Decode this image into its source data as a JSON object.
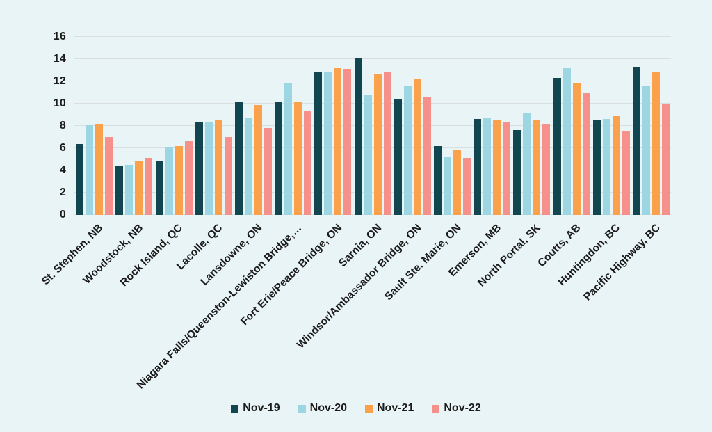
{
  "colors": {
    "background": "#e9f4f7",
    "gridline": "#d9dee1",
    "text": "#1b1b1b"
  },
  "chart_data": {
    "type": "bar",
    "title": "",
    "xlabel": "",
    "ylabel": "",
    "ylim": [
      0,
      16
    ],
    "yticks": [
      0,
      2,
      4,
      6,
      8,
      10,
      12,
      14,
      16
    ],
    "grid": true,
    "legend_position": "bottom",
    "categories": [
      "St. Stephen, NB",
      "Woodstock, NB",
      "Rock Island, QC",
      "Lacolle, QC",
      "Lansdowne, ON",
      "Niagara Falls/Queenston-Lewiston Bridge,…",
      "Fort Erie/Peace Bridge, ON",
      "Sarnia, ON",
      "Windsor/Ambassador Bridge, ON",
      "Sault Ste. Marie, ON",
      "Emerson, MB",
      "North Portal, SK",
      "Coutts, AB",
      "Huntingdon, BC",
      "Pacific Highway, BC"
    ],
    "series": [
      {
        "name": "Nov-19",
        "color": "#11454f",
        "values": [
          6.4,
          4.4,
          4.9,
          8.3,
          10.1,
          10.1,
          12.8,
          14.1,
          10.4,
          6.2,
          8.6,
          7.6,
          12.3,
          8.5,
          13.3
        ]
      },
      {
        "name": "Nov-20",
        "color": "#9bd6e2",
        "values": [
          8.1,
          4.5,
          6.1,
          8.3,
          8.7,
          11.8,
          12.8,
          10.8,
          11.6,
          5.2,
          8.7,
          9.1,
          13.2,
          8.6,
          11.6
        ]
      },
      {
        "name": "Nov-21",
        "color": "#fba14c",
        "values": [
          8.2,
          4.9,
          6.2,
          8.5,
          9.9,
          10.1,
          13.2,
          12.7,
          12.2,
          5.9,
          8.5,
          8.5,
          11.8,
          8.9,
          12.9
        ]
      },
      {
        "name": "Nov-22",
        "color": "#f5918a",
        "values": [
          7.0,
          5.1,
          6.7,
          7.0,
          7.8,
          9.3,
          13.1,
          12.8,
          10.6,
          5.1,
          8.3,
          8.2,
          11.0,
          7.5,
          10.0
        ]
      }
    ]
  }
}
